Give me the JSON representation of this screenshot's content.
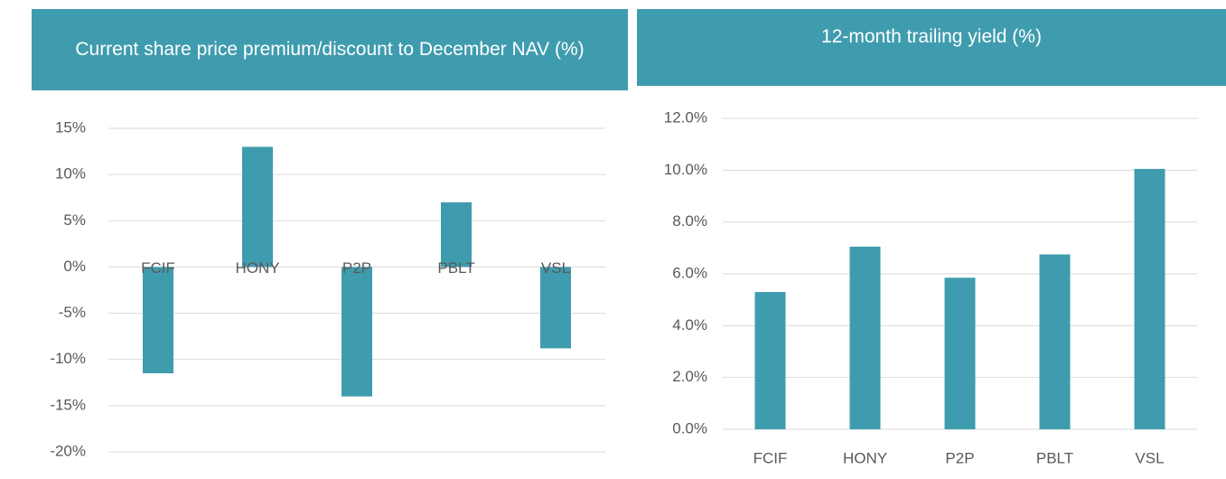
{
  "chart_data": [
    {
      "type": "bar",
      "title": "Current share price premium/discount to December NAV (%)",
      "categories": [
        "FCIF",
        "HONY",
        "P2P",
        "PBLT",
        "VSL"
      ],
      "values": [
        -11.5,
        13,
        -14,
        7,
        -8.8
      ],
      "color": "#3f9cae",
      "ylim": [
        -20,
        15
      ],
      "yticks": [
        {
          "value": -20,
          "label": "-20%"
        },
        {
          "value": -15,
          "label": "-15%"
        },
        {
          "value": -10,
          "label": "-10%"
        },
        {
          "value": -5,
          "label": "-5%"
        },
        {
          "value": 0,
          "label": "0%"
        },
        {
          "value": 5,
          "label": "5%"
        },
        {
          "value": 10,
          "label": "10%"
        },
        {
          "value": 15,
          "label": "15%"
        }
      ],
      "grid": true
    },
    {
      "type": "bar",
      "title": "12-month trailing yield (%)",
      "categories": [
        "FCIF",
        "HONY",
        "P2P",
        "PBLT",
        "VSL"
      ],
      "values": [
        5.3,
        7.05,
        5.85,
        6.75,
        10.05
      ],
      "color": "#3f9cae",
      "ylim": [
        0,
        12
      ],
      "yticks": [
        {
          "value": 0,
          "label": "0.0%"
        },
        {
          "value": 2,
          "label": "2.0%"
        },
        {
          "value": 4,
          "label": "4.0%"
        },
        {
          "value": 6,
          "label": "6.0%"
        },
        {
          "value": 8,
          "label": "8.0%"
        },
        {
          "value": 10,
          "label": "10.0%"
        },
        {
          "value": 12,
          "label": "12.0%"
        }
      ],
      "grid": true
    }
  ]
}
